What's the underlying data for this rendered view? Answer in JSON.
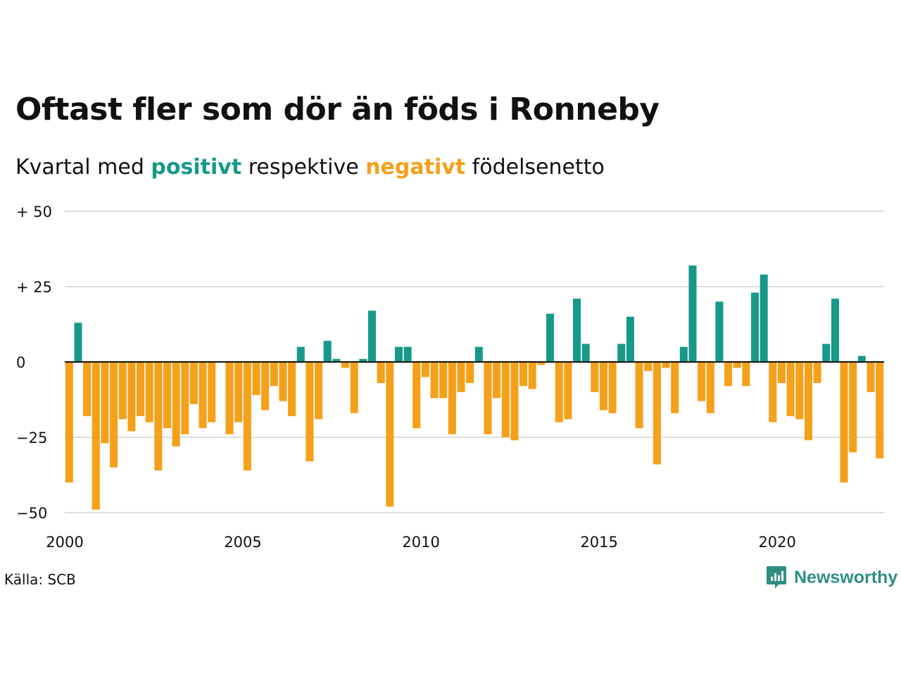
{
  "title": "Oftast fler som dör än föds i Ronneby",
  "subtitle": {
    "before": "Kvartal med ",
    "positive": "positivt",
    "middle": " respektive ",
    "negative": "negativt",
    "after": " födelsenetto"
  },
  "source": "Källa: SCB",
  "brand": "Newsworthy",
  "colors": {
    "positive": "#17998a",
    "negative": "#f5a01a",
    "grid": "#dddddd",
    "brand": "#2f8f83"
  },
  "chart_data": {
    "type": "bar",
    "title": "Oftast fler som dör än föds i Ronneby",
    "subtitle": "Kvartal med positivt respektive negativt födelsenetto",
    "xlabel": "",
    "ylabel": "",
    "start_year": 2000,
    "quarters_per_year": 4,
    "ylim": [
      -50,
      50
    ],
    "y_ticks": [
      50,
      25,
      0,
      -25,
      -50
    ],
    "y_tick_labels": [
      "+ 50",
      "+ 25",
      "0",
      "−25",
      "−50"
    ],
    "x_ticks": [
      2000,
      2005,
      2010,
      2015,
      2020
    ],
    "x_tick_labels": [
      "2000",
      "2005",
      "2010",
      "2015",
      "2020"
    ],
    "grid": true,
    "values": [
      -40,
      13,
      -18,
      -49,
      -27,
      -35,
      -19,
      -23,
      -18,
      -20,
      -36,
      -22,
      -28,
      -24,
      -14,
      -22,
      -20,
      0,
      -24,
      -20,
      -36,
      -11,
      -16,
      -8,
      -13,
      -18,
      5,
      -33,
      -19,
      7,
      1,
      -2,
      -17,
      1,
      17,
      -7,
      -48,
      5,
      5,
      -22,
      -5,
      -12,
      -12,
      -24,
      -10,
      -7,
      5,
      -24,
      -12,
      -25,
      -26,
      -8,
      -9,
      -1,
      16,
      -20,
      -19,
      21,
      6,
      -10,
      -16,
      -17,
      6,
      15,
      -22,
      -3,
      -34,
      -2,
      -17,
      5,
      32,
      -13,
      -17,
      20,
      -8,
      -2,
      -8,
      23,
      29,
      -20,
      -7,
      -18,
      -19,
      -26,
      -7,
      6,
      21,
      -40,
      -30,
      2,
      -10,
      -32
    ]
  }
}
